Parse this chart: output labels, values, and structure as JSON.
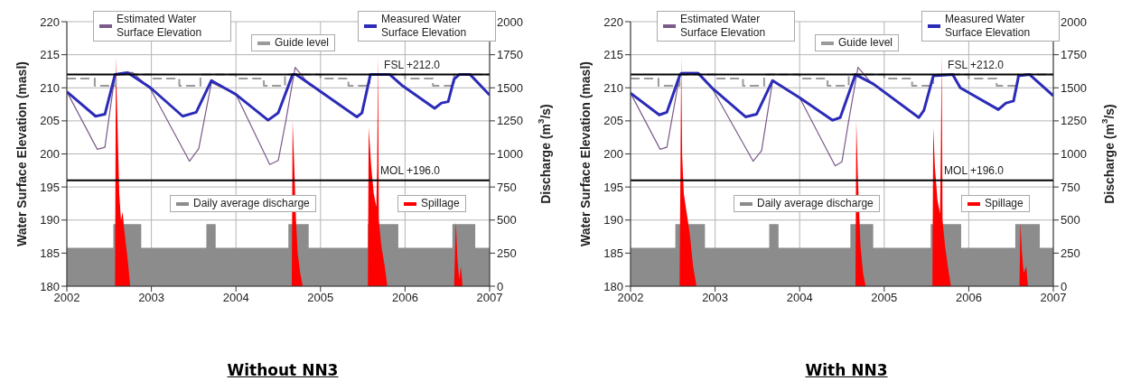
{
  "chart_data": [
    {
      "type": "line",
      "title": "Without NN3",
      "ylabel": "Water Surface Elevation (masl)",
      "y2label": "Discharge (m$^{3}$/s)",
      "xlim": [
        2002,
        2007
      ],
      "xticks": [
        2002,
        2003,
        2004,
        2005,
        2006,
        2007
      ],
      "ylim": [
        180,
        220
      ],
      "yticks": [
        180,
        185,
        190,
        195,
        200,
        205,
        210,
        215,
        220
      ],
      "y2lim": [
        0,
        2000
      ],
      "y2ticks": [
        0,
        250,
        500,
        750,
        1000,
        1250,
        1500,
        1750,
        2000
      ],
      "grid": true,
      "legend": "top",
      "ref_lines": [
        {
          "axis": "y",
          "value": 212,
          "label": "FSL +212.0",
          "color": "#000000"
        },
        {
          "axis": "y",
          "value": 196,
          "label": "MOL +196.0",
          "color": "#000000"
        }
      ],
      "series": [
        {
          "name": "Daily average discharge",
          "type": "area",
          "axis": "y2",
          "color": "#8c8c8c",
          "x": [
            2002,
            2002.55,
            2002.55,
            2002.88,
            2002.88,
            2003.65,
            2003.65,
            2003.76,
            2003.76,
            2004.62,
            2004.62,
            2004.86,
            2004.86,
            2005.56,
            2005.56,
            2005.92,
            2005.92,
            2006.56,
            2006.56,
            2006.83,
            2006.83,
            2007
          ],
          "values": [
            290,
            290,
            470,
            470,
            290,
            290,
            470,
            470,
            290,
            290,
            470,
            470,
            290,
            290,
            470,
            470,
            290,
            290,
            470,
            470,
            290,
            290
          ]
        },
        {
          "name": "Spillage",
          "type": "area",
          "axis": "y2",
          "color": "#ff0000",
          "x": [
            2002.57,
            2002.58,
            2002.6,
            2002.62,
            2002.64,
            2002.66,
            2002.68,
            2002.72,
            2002.75,
            2004.66,
            2004.67,
            2004.69,
            2004.71,
            2004.73,
            2004.76,
            2004.79,
            2005.56,
            2005.57,
            2005.6,
            2005.63,
            2005.66,
            2005.67,
            2005.68,
            2005.69,
            2005.72,
            2005.76,
            2005.79,
            2006.58,
            2006.6,
            2006.62,
            2006.64,
            2006.66,
            2006.68
          ],
          "values": [
            0,
            1730,
            1200,
            700,
            500,
            560,
            420,
            200,
            0,
            0,
            1250,
            900,
            500,
            250,
            100,
            0,
            0,
            1200,
            900,
            700,
            600,
            900,
            1750,
            500,
            300,
            150,
            0,
            0,
            490,
            200,
            50,
            150,
            0
          ]
        },
        {
          "name": "Guide level",
          "type": "step",
          "line_style": "dashed",
          "color": "#9a9a9a",
          "x": [
            2002,
            2002.33,
            2002.58,
            2003,
            2003.33,
            2003.58,
            2004,
            2004.33,
            2004.58,
            2005,
            2005.33,
            2005.58,
            2006,
            2006.33,
            2006.58,
            2007
          ],
          "values": [
            211.4,
            210.3,
            212,
            211.4,
            210.3,
            212,
            211.4,
            210.3,
            212,
            211.4,
            210.3,
            212,
            211.4,
            210.3,
            212,
            212
          ]
        },
        {
          "name": "Estimated Water Surface Elevation",
          "color": "#7a5a8a",
          "x": [
            2002,
            2002.36,
            2002.45,
            2002.57,
            2002.66,
            2002.78,
            2002.99,
            2003.45,
            2003.56,
            2003.71,
            2004,
            2004.4,
            2004.5,
            2004.59,
            2004.7,
            2004.88
          ],
          "values": [
            209.4,
            200.7,
            201,
            212,
            212.3,
            212.3,
            209.8,
            198.9,
            200.8,
            210.8,
            209,
            198.4,
            199,
            205,
            213.1,
            210.3
          ]
        },
        {
          "name": "Measured Water Surface Elevation",
          "color": "#2b2bb8",
          "x": [
            2002,
            2002.34,
            2002.45,
            2002.57,
            2002.72,
            2002.99,
            2003.37,
            2003.53,
            2003.71,
            2004,
            2004.38,
            2004.5,
            2004.67,
            2004.71,
            2004.88,
            2005.43,
            2005.49,
            2005.59,
            2005.82,
            2005.97,
            2006.35,
            2006.43,
            2006.51,
            2006.58,
            2006.64,
            2006.77,
            2007
          ],
          "values": [
            209.4,
            205.7,
            206,
            212,
            212.3,
            210,
            205.7,
            206.3,
            211.1,
            209,
            205.1,
            206.2,
            212,
            212,
            210.5,
            205.6,
            206.2,
            212,
            212,
            210.3,
            206.9,
            207.7,
            207.9,
            211.3,
            212,
            212,
            208.9
          ]
        }
      ]
    },
    {
      "type": "line",
      "title": "With NN3",
      "ylabel": "Water Surface Elevation (masl)",
      "y2label": "Discharge (m$^{3}$/s)",
      "xlim": [
        2002,
        2007
      ],
      "xticks": [
        2002,
        2003,
        2004,
        2005,
        2006,
        2007
      ],
      "ylim": [
        180,
        220
      ],
      "yticks": [
        180,
        185,
        190,
        195,
        200,
        205,
        210,
        215,
        220
      ],
      "y2lim": [
        0,
        2000
      ],
      "y2ticks": [
        0,
        250,
        500,
        750,
        1000,
        1250,
        1500,
        1750,
        2000
      ],
      "grid": true,
      "legend": "top",
      "ref_lines": [
        {
          "axis": "y",
          "value": 212,
          "label": "FSL +212.0",
          "color": "#000000"
        },
        {
          "axis": "y",
          "value": 196,
          "label": "MOL +196.0",
          "color": "#000000"
        }
      ],
      "series": [
        {
          "name": "Daily average discharge",
          "type": "area",
          "axis": "y2",
          "color": "#8c8c8c",
          "x": [
            2002,
            2002.53,
            2002.53,
            2002.88,
            2002.88,
            2003.64,
            2003.64,
            2003.75,
            2003.75,
            2004.6,
            2004.6,
            2004.87,
            2004.87,
            2005.55,
            2005.55,
            2005.91,
            2005.91,
            2006.55,
            2006.55,
            2006.84,
            2006.84,
            2007
          ],
          "values": [
            290,
            290,
            470,
            470,
            290,
            290,
            470,
            470,
            290,
            290,
            470,
            470,
            290,
            290,
            470,
            470,
            290,
            290,
            470,
            470,
            290,
            290
          ]
        },
        {
          "name": "Spillage",
          "type": "area",
          "axis": "y2",
          "color": "#ff0000",
          "x": [
            2002.58,
            2002.6,
            2002.61,
            2002.63,
            2002.66,
            2002.7,
            2002.74,
            2002.78,
            2004.66,
            2004.67,
            2004.69,
            2004.72,
            2004.75,
            2004.78,
            2005.57,
            2005.58,
            2005.6,
            2005.63,
            2005.66,
            2005.67,
            2005.68,
            2005.69,
            2005.72,
            2005.76,
            2005.79,
            2006.6,
            2006.61,
            2006.63,
            2006.65,
            2006.68,
            2006.7
          ],
          "values": [
            0,
            1730,
            1000,
            700,
            570,
            400,
            150,
            0,
            0,
            1250,
            800,
            300,
            100,
            0,
            0,
            1200,
            900,
            650,
            550,
            1000,
            1750,
            500,
            300,
            120,
            0,
            0,
            480,
            250,
            100,
            150,
            0
          ]
        },
        {
          "name": "Guide level",
          "type": "step",
          "line_style": "dashed",
          "color": "#9a9a9a",
          "x": [
            2002,
            2002.33,
            2002.58,
            2003,
            2003.33,
            2003.58,
            2004,
            2004.33,
            2004.58,
            2005,
            2005.33,
            2005.58,
            2006,
            2006.33,
            2006.58,
            2007
          ],
          "values": [
            211.4,
            210.3,
            212,
            211.4,
            210.3,
            212,
            211.4,
            210.3,
            212,
            211.4,
            210.3,
            212,
            211.4,
            210.3,
            212,
            212
          ]
        },
        {
          "name": "Estimated Water Surface Elevation",
          "color": "#7a5a8a",
          "x": [
            2002,
            2002.35,
            2002.43,
            2002.58,
            2002.62,
            2002.8,
            2002.97,
            2003.45,
            2003.55,
            2003.68,
            2004,
            2004.42,
            2004.5,
            2004.58,
            2004.69,
            2004.87
          ],
          "values": [
            209.2,
            200.7,
            201,
            211.8,
            212.3,
            212.3,
            209.8,
            198.9,
            200.5,
            211,
            208.5,
            198.2,
            198.8,
            205,
            213.1,
            210.4
          ]
        },
        {
          "name": "Measured Water Surface Elevation",
          "color": "#2b2bb8",
          "x": [
            2002,
            2002.34,
            2002.43,
            2002.58,
            2002.6,
            2002.8,
            2002.97,
            2003.36,
            2003.49,
            2003.68,
            2004,
            2004.39,
            2004.48,
            2004.66,
            2004.87,
            2005.41,
            2005.47,
            2005.58,
            2005.81,
            2005.9,
            2006.35,
            2006.44,
            2006.53,
            2006.59,
            2006.72,
            2007
          ],
          "values": [
            209.2,
            205.9,
            206.3,
            211.8,
            212.2,
            212.2,
            209.9,
            205.6,
            206,
            211.1,
            208.5,
            205.1,
            205.5,
            212,
            210.6,
            205.5,
            206.6,
            211.8,
            212,
            210,
            206.7,
            207.7,
            208,
            211.8,
            212,
            208.8
          ]
        }
      ]
    }
  ]
}
